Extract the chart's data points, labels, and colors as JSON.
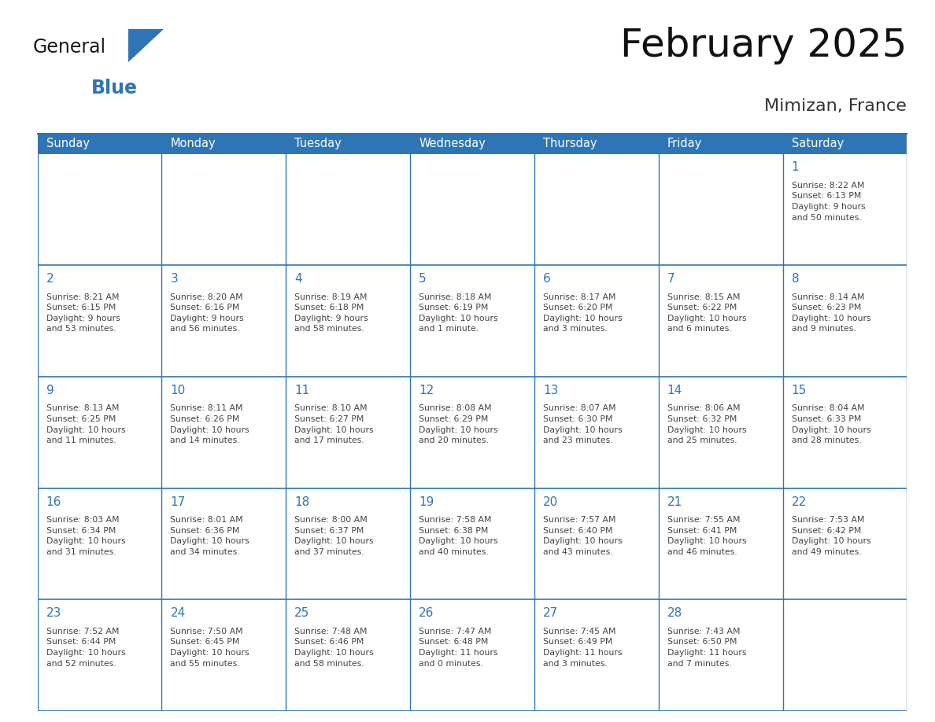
{
  "title": "February 2025",
  "subtitle": "Mimizan, France",
  "header_color": "#2E75B6",
  "header_text_color": "#FFFFFF",
  "cell_bg_color": "#FFFFFF",
  "cell_border_color": "#2E75B6",
  "day_number_color": "#2E75B6",
  "cell_text_color": "#444444",
  "days_of_week": [
    "Sunday",
    "Monday",
    "Tuesday",
    "Wednesday",
    "Thursday",
    "Friday",
    "Saturday"
  ],
  "weeks": [
    [
      {
        "day": "",
        "info": ""
      },
      {
        "day": "",
        "info": ""
      },
      {
        "day": "",
        "info": ""
      },
      {
        "day": "",
        "info": ""
      },
      {
        "day": "",
        "info": ""
      },
      {
        "day": "",
        "info": ""
      },
      {
        "day": "1",
        "info": "Sunrise: 8:22 AM\nSunset: 6:13 PM\nDaylight: 9 hours\nand 50 minutes."
      }
    ],
    [
      {
        "day": "2",
        "info": "Sunrise: 8:21 AM\nSunset: 6:15 PM\nDaylight: 9 hours\nand 53 minutes."
      },
      {
        "day": "3",
        "info": "Sunrise: 8:20 AM\nSunset: 6:16 PM\nDaylight: 9 hours\nand 56 minutes."
      },
      {
        "day": "4",
        "info": "Sunrise: 8:19 AM\nSunset: 6:18 PM\nDaylight: 9 hours\nand 58 minutes."
      },
      {
        "day": "5",
        "info": "Sunrise: 8:18 AM\nSunset: 6:19 PM\nDaylight: 10 hours\nand 1 minute."
      },
      {
        "day": "6",
        "info": "Sunrise: 8:17 AM\nSunset: 6:20 PM\nDaylight: 10 hours\nand 3 minutes."
      },
      {
        "day": "7",
        "info": "Sunrise: 8:15 AM\nSunset: 6:22 PM\nDaylight: 10 hours\nand 6 minutes."
      },
      {
        "day": "8",
        "info": "Sunrise: 8:14 AM\nSunset: 6:23 PM\nDaylight: 10 hours\nand 9 minutes."
      }
    ],
    [
      {
        "day": "9",
        "info": "Sunrise: 8:13 AM\nSunset: 6:25 PM\nDaylight: 10 hours\nand 11 minutes."
      },
      {
        "day": "10",
        "info": "Sunrise: 8:11 AM\nSunset: 6:26 PM\nDaylight: 10 hours\nand 14 minutes."
      },
      {
        "day": "11",
        "info": "Sunrise: 8:10 AM\nSunset: 6:27 PM\nDaylight: 10 hours\nand 17 minutes."
      },
      {
        "day": "12",
        "info": "Sunrise: 8:08 AM\nSunset: 6:29 PM\nDaylight: 10 hours\nand 20 minutes."
      },
      {
        "day": "13",
        "info": "Sunrise: 8:07 AM\nSunset: 6:30 PM\nDaylight: 10 hours\nand 23 minutes."
      },
      {
        "day": "14",
        "info": "Sunrise: 8:06 AM\nSunset: 6:32 PM\nDaylight: 10 hours\nand 25 minutes."
      },
      {
        "day": "15",
        "info": "Sunrise: 8:04 AM\nSunset: 6:33 PM\nDaylight: 10 hours\nand 28 minutes."
      }
    ],
    [
      {
        "day": "16",
        "info": "Sunrise: 8:03 AM\nSunset: 6:34 PM\nDaylight: 10 hours\nand 31 minutes."
      },
      {
        "day": "17",
        "info": "Sunrise: 8:01 AM\nSunset: 6:36 PM\nDaylight: 10 hours\nand 34 minutes."
      },
      {
        "day": "18",
        "info": "Sunrise: 8:00 AM\nSunset: 6:37 PM\nDaylight: 10 hours\nand 37 minutes."
      },
      {
        "day": "19",
        "info": "Sunrise: 7:58 AM\nSunset: 6:38 PM\nDaylight: 10 hours\nand 40 minutes."
      },
      {
        "day": "20",
        "info": "Sunrise: 7:57 AM\nSunset: 6:40 PM\nDaylight: 10 hours\nand 43 minutes."
      },
      {
        "day": "21",
        "info": "Sunrise: 7:55 AM\nSunset: 6:41 PM\nDaylight: 10 hours\nand 46 minutes."
      },
      {
        "day": "22",
        "info": "Sunrise: 7:53 AM\nSunset: 6:42 PM\nDaylight: 10 hours\nand 49 minutes."
      }
    ],
    [
      {
        "day": "23",
        "info": "Sunrise: 7:52 AM\nSunset: 6:44 PM\nDaylight: 10 hours\nand 52 minutes."
      },
      {
        "day": "24",
        "info": "Sunrise: 7:50 AM\nSunset: 6:45 PM\nDaylight: 10 hours\nand 55 minutes."
      },
      {
        "day": "25",
        "info": "Sunrise: 7:48 AM\nSunset: 6:46 PM\nDaylight: 10 hours\nand 58 minutes."
      },
      {
        "day": "26",
        "info": "Sunrise: 7:47 AM\nSunset: 6:48 PM\nDaylight: 11 hours\nand 0 minutes."
      },
      {
        "day": "27",
        "info": "Sunrise: 7:45 AM\nSunset: 6:49 PM\nDaylight: 11 hours\nand 3 minutes."
      },
      {
        "day": "28",
        "info": "Sunrise: 7:43 AM\nSunset: 6:50 PM\nDaylight: 11 hours\nand 7 minutes."
      },
      {
        "day": "",
        "info": ""
      }
    ]
  ],
  "logo_text_general": "General",
  "logo_text_blue": "Blue",
  "logo_triangle_color": "#2E75B6",
  "title_fontsize": 36,
  "subtitle_fontsize": 16,
  "header_fontsize": 10.5,
  "day_num_fontsize": 11,
  "cell_text_fontsize": 7.8
}
